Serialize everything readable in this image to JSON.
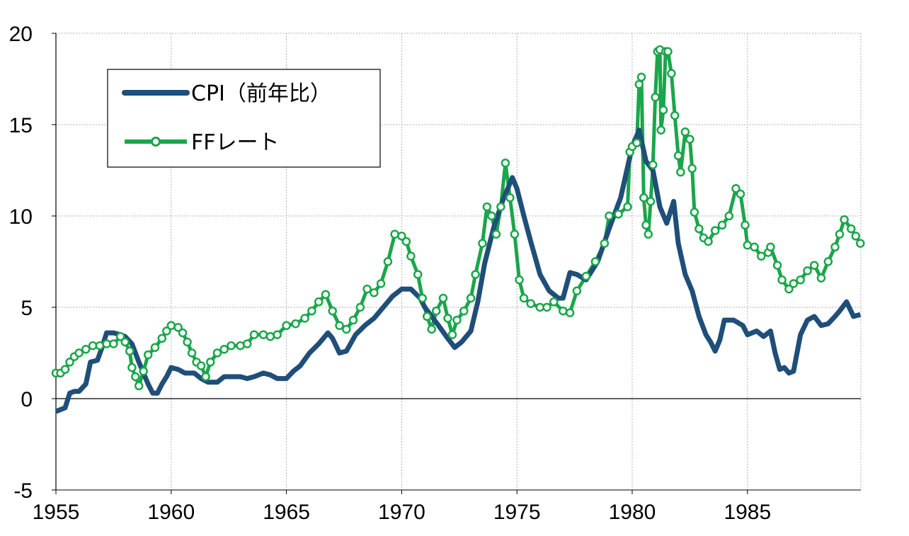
{
  "chart_data": {
    "type": "line",
    "title": "",
    "xlabel": "",
    "ylabel": "",
    "xlim": [
      1955,
      1989.92
    ],
    "ylim": [
      -5,
      20
    ],
    "x_ticks": [
      "1955",
      "1960",
      "1965",
      "1970",
      "1975",
      "1980",
      "1985"
    ],
    "y_ticks": [
      "-5",
      "0",
      "5",
      "10",
      "15",
      "20"
    ],
    "grid": true,
    "legend_placement": "top-left",
    "colors": {
      "cpi": "#1f4e79",
      "ff": "#1aa64a"
    },
    "series": [
      {
        "name": "CPI（前年比）",
        "marker": "none",
        "points": [
          [
            1955.0,
            -0.7
          ],
          [
            1955.4,
            -0.5
          ],
          [
            1955.6,
            0.3
          ],
          [
            1955.8,
            0.4
          ],
          [
            1956.0,
            0.4
          ],
          [
            1956.3,
            0.8
          ],
          [
            1956.5,
            2.0
          ],
          [
            1956.8,
            2.1
          ],
          [
            1957.0,
            2.8
          ],
          [
            1957.2,
            3.6
          ],
          [
            1957.5,
            3.6
          ],
          [
            1957.8,
            3.5
          ],
          [
            1958.0,
            3.4
          ],
          [
            1958.3,
            3.0
          ],
          [
            1958.6,
            2.0
          ],
          [
            1959.0,
            0.8
          ],
          [
            1959.2,
            0.3
          ],
          [
            1959.4,
            0.3
          ],
          [
            1959.6,
            0.8
          ],
          [
            1959.8,
            1.2
          ],
          [
            1960.0,
            1.7
          ],
          [
            1960.3,
            1.6
          ],
          [
            1960.6,
            1.4
          ],
          [
            1961.0,
            1.4
          ],
          [
            1961.3,
            1.1
          ],
          [
            1961.6,
            0.9
          ],
          [
            1962.0,
            0.9
          ],
          [
            1962.3,
            1.2
          ],
          [
            1962.6,
            1.2
          ],
          [
            1963.0,
            1.2
          ],
          [
            1963.3,
            1.1
          ],
          [
            1963.6,
            1.2
          ],
          [
            1964.0,
            1.4
          ],
          [
            1964.3,
            1.3
          ],
          [
            1964.6,
            1.1
          ],
          [
            1965.0,
            1.1
          ],
          [
            1965.3,
            1.5
          ],
          [
            1965.6,
            1.8
          ],
          [
            1966.0,
            2.5
          ],
          [
            1966.4,
            3.0
          ],
          [
            1966.8,
            3.6
          ],
          [
            1967.0,
            3.3
          ],
          [
            1967.3,
            2.5
          ],
          [
            1967.6,
            2.6
          ],
          [
            1968.0,
            3.5
          ],
          [
            1968.4,
            4.0
          ],
          [
            1968.8,
            4.4
          ],
          [
            1969.2,
            5.0
          ],
          [
            1969.6,
            5.6
          ],
          [
            1970.0,
            6.0
          ],
          [
            1970.4,
            6.0
          ],
          [
            1970.8,
            5.5
          ],
          [
            1971.0,
            5.0
          ],
          [
            1971.3,
            4.5
          ],
          [
            1971.6,
            4.0
          ],
          [
            1972.0,
            3.3
          ],
          [
            1972.3,
            2.8
          ],
          [
            1972.6,
            3.1
          ],
          [
            1973.0,
            3.7
          ],
          [
            1973.3,
            5.3
          ],
          [
            1973.6,
            7.4
          ],
          [
            1974.0,
            9.4
          ],
          [
            1974.4,
            10.9
          ],
          [
            1974.8,
            12.1
          ],
          [
            1975.0,
            11.5
          ],
          [
            1975.3,
            10.0
          ],
          [
            1975.6,
            8.6
          ],
          [
            1976.0,
            6.8
          ],
          [
            1976.4,
            5.9
          ],
          [
            1976.8,
            5.5
          ],
          [
            1977.0,
            5.5
          ],
          [
            1977.3,
            6.9
          ],
          [
            1977.6,
            6.8
          ],
          [
            1978.0,
            6.5
          ],
          [
            1978.5,
            7.5
          ],
          [
            1979.0,
            9.3
          ],
          [
            1979.5,
            11.0
          ],
          [
            1980.0,
            13.8
          ],
          [
            1980.3,
            14.7
          ],
          [
            1980.6,
            13.0
          ],
          [
            1980.9,
            12.5
          ],
          [
            1981.2,
            10.5
          ],
          [
            1981.5,
            9.6
          ],
          [
            1981.8,
            10.8
          ],
          [
            1982.0,
            8.5
          ],
          [
            1982.3,
            6.8
          ],
          [
            1982.6,
            5.9
          ],
          [
            1982.9,
            4.5
          ],
          [
            1983.2,
            3.5
          ],
          [
            1983.4,
            3.1
          ],
          [
            1983.6,
            2.6
          ],
          [
            1983.8,
            3.2
          ],
          [
            1984.0,
            4.3
          ],
          [
            1984.4,
            4.3
          ],
          [
            1984.8,
            4.0
          ],
          [
            1985.0,
            3.5
          ],
          [
            1985.4,
            3.7
          ],
          [
            1985.7,
            3.4
          ],
          [
            1986.0,
            3.7
          ],
          [
            1986.2,
            2.5
          ],
          [
            1986.4,
            1.6
          ],
          [
            1986.6,
            1.7
          ],
          [
            1986.8,
            1.4
          ],
          [
            1987.0,
            1.5
          ],
          [
            1987.3,
            3.5
          ],
          [
            1987.6,
            4.3
          ],
          [
            1987.9,
            4.5
          ],
          [
            1988.2,
            4.0
          ],
          [
            1988.5,
            4.1
          ],
          [
            1988.8,
            4.5
          ],
          [
            1989.0,
            4.8
          ],
          [
            1989.3,
            5.3
          ],
          [
            1989.6,
            4.5
          ],
          [
            1989.9,
            4.6
          ]
        ]
      },
      {
        "name": "FFレート",
        "marker": "circle",
        "points": [
          [
            1955.0,
            1.4
          ],
          [
            1955.2,
            1.4
          ],
          [
            1955.4,
            1.6
          ],
          [
            1955.6,
            2.0
          ],
          [
            1955.8,
            2.3
          ],
          [
            1956.0,
            2.5
          ],
          [
            1956.3,
            2.7
          ],
          [
            1956.6,
            2.9
          ],
          [
            1956.9,
            2.9
          ],
          [
            1957.2,
            3.0
          ],
          [
            1957.5,
            3.0
          ],
          [
            1957.8,
            3.4
          ],
          [
            1958.0,
            3.1
          ],
          [
            1958.2,
            2.6
          ],
          [
            1958.3,
            1.7
          ],
          [
            1958.45,
            1.2
          ],
          [
            1958.6,
            0.7
          ],
          [
            1958.8,
            1.5
          ],
          [
            1959.0,
            2.4
          ],
          [
            1959.3,
            2.8
          ],
          [
            1959.6,
            3.3
          ],
          [
            1959.8,
            3.7
          ],
          [
            1960.0,
            4.0
          ],
          [
            1960.3,
            3.9
          ],
          [
            1960.5,
            3.6
          ],
          [
            1960.7,
            3.1
          ],
          [
            1960.9,
            2.5
          ],
          [
            1961.1,
            2.0
          ],
          [
            1961.3,
            1.8
          ],
          [
            1961.5,
            1.2
          ],
          [
            1961.7,
            2.0
          ],
          [
            1962.0,
            2.5
          ],
          [
            1962.3,
            2.7
          ],
          [
            1962.6,
            2.9
          ],
          [
            1963.0,
            2.9
          ],
          [
            1963.3,
            3.0
          ],
          [
            1963.6,
            3.5
          ],
          [
            1964.0,
            3.5
          ],
          [
            1964.3,
            3.4
          ],
          [
            1964.6,
            3.5
          ],
          [
            1965.0,
            4.0
          ],
          [
            1965.4,
            4.1
          ],
          [
            1965.8,
            4.4
          ],
          [
            1966.1,
            4.8
          ],
          [
            1966.4,
            5.3
          ],
          [
            1966.7,
            5.7
          ],
          [
            1967.0,
            4.8
          ],
          [
            1967.3,
            4.0
          ],
          [
            1967.6,
            3.8
          ],
          [
            1967.9,
            4.3
          ],
          [
            1968.2,
            5.0
          ],
          [
            1968.5,
            6.0
          ],
          [
            1968.8,
            5.8
          ],
          [
            1969.1,
            6.3
          ],
          [
            1969.4,
            7.5
          ],
          [
            1969.7,
            9.0
          ],
          [
            1970.0,
            8.9
          ],
          [
            1970.2,
            8.6
          ],
          [
            1970.4,
            7.8
          ],
          [
            1970.7,
            6.8
          ],
          [
            1970.9,
            5.5
          ],
          [
            1971.1,
            4.5
          ],
          [
            1971.3,
            3.8
          ],
          [
            1971.5,
            4.8
          ],
          [
            1971.8,
            5.5
          ],
          [
            1972.0,
            4.4
          ],
          [
            1972.2,
            3.5
          ],
          [
            1972.4,
            4.3
          ],
          [
            1972.7,
            4.8
          ],
          [
            1973.0,
            5.5
          ],
          [
            1973.2,
            6.8
          ],
          [
            1973.5,
            8.5
          ],
          [
            1973.7,
            10.5
          ],
          [
            1973.9,
            10.0
          ],
          [
            1974.1,
            9.0
          ],
          [
            1974.3,
            10.5
          ],
          [
            1974.5,
            12.9
          ],
          [
            1974.7,
            11.0
          ],
          [
            1974.9,
            9.0
          ],
          [
            1975.1,
            6.5
          ],
          [
            1975.3,
            5.5
          ],
          [
            1975.6,
            5.2
          ],
          [
            1976.0,
            5.0
          ],
          [
            1976.3,
            5.0
          ],
          [
            1976.6,
            5.3
          ],
          [
            1977.0,
            4.8
          ],
          [
            1977.3,
            4.7
          ],
          [
            1977.6,
            5.9
          ],
          [
            1978.0,
            6.7
          ],
          [
            1978.4,
            7.5
          ],
          [
            1978.8,
            8.5
          ],
          [
            1979.0,
            10.0
          ],
          [
            1979.4,
            10.1
          ],
          [
            1979.8,
            10.5
          ],
          [
            1979.9,
            13.5
          ],
          [
            1980.0,
            13.8
          ],
          [
            1980.2,
            14.0
          ],
          [
            1980.3,
            17.2
          ],
          [
            1980.4,
            17.6
          ],
          [
            1980.5,
            11.0
          ],
          [
            1980.6,
            9.5
          ],
          [
            1980.7,
            9.0
          ],
          [
            1980.8,
            10.8
          ],
          [
            1980.9,
            12.8
          ],
          [
            1981.0,
            16.5
          ],
          [
            1981.1,
            19.0
          ],
          [
            1981.2,
            19.1
          ],
          [
            1981.25,
            14.7
          ],
          [
            1981.35,
            15.8
          ],
          [
            1981.45,
            19.0
          ],
          [
            1981.55,
            19.0
          ],
          [
            1981.7,
            17.8
          ],
          [
            1981.85,
            15.5
          ],
          [
            1982.0,
            13.3
          ],
          [
            1982.1,
            12.4
          ],
          [
            1982.3,
            14.6
          ],
          [
            1982.5,
            14.2
          ],
          [
            1982.6,
            12.6
          ],
          [
            1982.7,
            10.2
          ],
          [
            1982.9,
            9.3
          ],
          [
            1983.1,
            8.8
          ],
          [
            1983.3,
            8.6
          ],
          [
            1983.6,
            9.2
          ],
          [
            1983.9,
            9.5
          ],
          [
            1984.2,
            10.0
          ],
          [
            1984.5,
            11.5
          ],
          [
            1984.7,
            11.2
          ],
          [
            1984.9,
            9.5
          ],
          [
            1985.0,
            8.4
          ],
          [
            1985.3,
            8.3
          ],
          [
            1985.6,
            7.8
          ],
          [
            1985.9,
            8.0
          ],
          [
            1986.0,
            8.3
          ],
          [
            1986.3,
            7.3
          ],
          [
            1986.5,
            6.5
          ],
          [
            1986.8,
            6.0
          ],
          [
            1987.0,
            6.3
          ],
          [
            1987.3,
            6.5
          ],
          [
            1987.6,
            7.0
          ],
          [
            1987.9,
            7.3
          ],
          [
            1988.2,
            6.6
          ],
          [
            1988.5,
            7.5
          ],
          [
            1988.8,
            8.3
          ],
          [
            1989.0,
            9.0
          ],
          [
            1989.2,
            9.8
          ],
          [
            1989.5,
            9.3
          ],
          [
            1989.7,
            8.9
          ],
          [
            1989.9,
            8.5
          ]
        ]
      }
    ]
  }
}
